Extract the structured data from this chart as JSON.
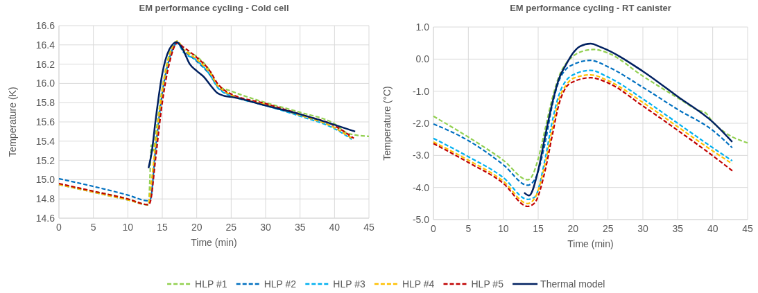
{
  "chart_data": [
    {
      "type": "line",
      "title": "EM performance cycling - Cold cell",
      "xlabel": "Time (min)",
      "ylabel": "Temperature (K)",
      "xlim": [
        0,
        45
      ],
      "xticks": [
        0,
        5,
        10,
        15,
        20,
        25,
        30,
        35,
        40,
        45
      ],
      "ylim": [
        14.6,
        16.6
      ],
      "yticks": [
        {
          "value": 14.6,
          "label": "14.6"
        },
        {
          "value": 14.8,
          "label": "14.8"
        },
        {
          "value": 15,
          "label": "15.0"
        },
        {
          "value": 15.2,
          "label": "15.2"
        },
        {
          "value": 15.4,
          "label": "15.4"
        },
        {
          "value": 15.6,
          "label": "15.6"
        },
        {
          "value": 15.8,
          "label": "15.8"
        },
        {
          "value": 16,
          "label": "16.0"
        },
        {
          "value": 16.2,
          "label": "16.2"
        },
        {
          "value": 16.4,
          "label": "16.4"
        },
        {
          "value": 16.6,
          "label": "16.6"
        }
      ],
      "grid": true,
      "legend": "bottom",
      "series": [
        {
          "name": "HLP #1",
          "color": "#92d050",
          "line_style": "dashed",
          "x": [
            0,
            5,
            10,
            13,
            13.2,
            13.4,
            13.7,
            14,
            15,
            16,
            17.2,
            18,
            20,
            22,
            23,
            25,
            30,
            35,
            40,
            42,
            45
          ],
          "values": [
            14.95,
            14.88,
            14.8,
            14.74,
            15.0,
            15.36,
            15.3,
            15.45,
            15.95,
            16.3,
            16.44,
            16.36,
            16.28,
            16.12,
            15.98,
            15.92,
            15.8,
            15.7,
            15.58,
            15.48,
            15.45
          ]
        },
        {
          "name": "HLP #2",
          "color": "#0070c0",
          "line_style": "dashed",
          "x": [
            0,
            5,
            10,
            13,
            13.3,
            14,
            15,
            16,
            17.2,
            18,
            20,
            22,
            23,
            24,
            25,
            30,
            35,
            40,
            42.5
          ],
          "values": [
            15.01,
            14.93,
            14.84,
            14.78,
            14.8,
            15.3,
            15.9,
            16.25,
            16.42,
            16.35,
            16.23,
            16.08,
            15.97,
            15.91,
            15.88,
            15.77,
            15.67,
            15.54,
            15.43
          ]
        },
        {
          "name": "HLP #3",
          "color": "#00b0f0",
          "line_style": "dashed",
          "x": [
            0,
            5,
            10,
            13,
            13.3,
            14,
            15,
            16,
            17.2,
            18,
            20,
            22,
            23,
            24,
            25,
            30,
            35,
            40,
            42.5
          ],
          "values": [
            14.95,
            14.87,
            14.79,
            14.74,
            14.85,
            15.3,
            15.88,
            16.25,
            16.42,
            16.33,
            16.24,
            16.08,
            15.96,
            15.9,
            15.87,
            15.77,
            15.66,
            15.53,
            15.42
          ]
        },
        {
          "name": "HLP #4",
          "color": "#ffc000",
          "line_style": "dashed",
          "x": [
            0,
            5,
            10,
            13,
            13.3,
            14,
            15,
            16,
            17.2,
            18,
            20,
            22,
            23,
            24,
            25,
            30,
            35,
            40,
            42.5
          ],
          "values": [
            14.95,
            14.87,
            14.79,
            14.74,
            14.9,
            15.35,
            15.92,
            16.28,
            16.44,
            16.36,
            16.25,
            16.1,
            15.98,
            15.92,
            15.88,
            15.78,
            15.67,
            15.54,
            15.43
          ]
        },
        {
          "name": "HLP #5",
          "color": "#c00000",
          "line_style": "dashed",
          "x": [
            0,
            5,
            10,
            13,
            13.3,
            14,
            15,
            16,
            17.2,
            18,
            20,
            22,
            23,
            24,
            25,
            30,
            35,
            40,
            42.8
          ],
          "values": [
            14.96,
            14.88,
            14.8,
            14.74,
            14.78,
            15.2,
            15.8,
            16.2,
            16.42,
            16.38,
            16.27,
            16.12,
            16.0,
            15.93,
            15.89,
            15.79,
            15.68,
            15.56,
            15.43
          ]
        },
        {
          "name": "Thermal model",
          "color": "#002060",
          "line_style": "solid",
          "x": [
            13,
            13.5,
            14,
            15,
            16,
            17.1,
            18,
            19,
            20,
            21,
            22,
            23,
            24,
            25,
            30,
            35,
            40,
            43
          ],
          "values": [
            15.12,
            15.3,
            15.6,
            16.1,
            16.35,
            16.43,
            16.35,
            16.2,
            16.13,
            16.07,
            15.98,
            15.9,
            15.87,
            15.86,
            15.77,
            15.68,
            15.57,
            15.5
          ]
        }
      ]
    },
    {
      "type": "line",
      "title": "EM performance cycling - RT canister",
      "xlabel": "Time (min)",
      "ylabel": "Temperature (°C)",
      "xlim": [
        0,
        45
      ],
      "xticks": [
        0,
        5,
        10,
        15,
        20,
        25,
        30,
        35,
        40,
        45
      ],
      "ylim": [
        -5,
        1
      ],
      "yticks": [
        {
          "value": -5,
          "label": "-5.0"
        },
        {
          "value": -4,
          "label": "-4.0"
        },
        {
          "value": -3,
          "label": "-3.0"
        },
        {
          "value": -2,
          "label": "-2.0"
        },
        {
          "value": -1,
          "label": "-1.0"
        },
        {
          "value": 0,
          "label": "0.0"
        },
        {
          "value": 1,
          "label": "1.0"
        }
      ],
      "grid": true,
      "legend": "bottom",
      "series": [
        {
          "name": "HLP #1",
          "color": "#92d050",
          "line_style": "dashed",
          "x": [
            0,
            5,
            10,
            13.5,
            14,
            15,
            16,
            17,
            18,
            19,
            20,
            22,
            23,
            25,
            30,
            35,
            38,
            39,
            40,
            42,
            45
          ],
          "values": [
            -1.78,
            -2.43,
            -3.15,
            -3.76,
            -3.69,
            -3.11,
            -2.18,
            -1.24,
            -0.53,
            -0.13,
            0.09,
            0.28,
            0.3,
            0.19,
            -0.53,
            -1.21,
            -1.6,
            -1.68,
            -1.96,
            -2.32,
            -2.61
          ]
        },
        {
          "name": "HLP #2",
          "color": "#0070c0",
          "line_style": "dashed",
          "x": [
            0,
            5,
            10,
            13.5,
            14.5,
            16,
            17,
            18,
            19,
            20,
            22.5,
            25,
            30,
            35,
            40,
            42.8
          ],
          "values": [
            -2.02,
            -2.54,
            -3.29,
            -3.93,
            -3.76,
            -2.61,
            -1.46,
            -0.67,
            -0.31,
            -0.17,
            -0.04,
            -0.24,
            -0.88,
            -1.57,
            -2.22,
            -2.76
          ]
        },
        {
          "name": "HLP #3",
          "color": "#00b0f0",
          "line_style": "dashed",
          "x": [
            0,
            5,
            10,
            13.5,
            14.5,
            16,
            17,
            18,
            19,
            20,
            22.5,
            25,
            30,
            35,
            40,
            42.8
          ],
          "values": [
            -2.47,
            -3.04,
            -3.69,
            -4.37,
            -4.3,
            -3.11,
            -1.96,
            -1.1,
            -0.67,
            -0.49,
            -0.35,
            -0.56,
            -1.24,
            -2.0,
            -2.76,
            -3.17
          ]
        },
        {
          "name": "HLP #4",
          "color": "#ffc000",
          "line_style": "dashed",
          "x": [
            0,
            5,
            10,
            13.5,
            14.5,
            16,
            17,
            18,
            19,
            20,
            22.5,
            25,
            30,
            35,
            40,
            42.8
          ],
          "values": [
            -2.58,
            -3.15,
            -3.8,
            -4.5,
            -4.34,
            -3.26,
            -2.18,
            -1.24,
            -0.81,
            -0.6,
            -0.49,
            -0.67,
            -1.35,
            -2.11,
            -2.86,
            -3.26
          ]
        },
        {
          "name": "HLP #5",
          "color": "#c00000",
          "line_style": "dashed",
          "x": [
            0,
            5,
            10,
            13.5,
            14.5,
            16,
            17,
            18,
            19,
            20,
            22.5,
            25,
            30,
            35,
            40,
            43
          ],
          "values": [
            -2.63,
            -3.22,
            -3.87,
            -4.59,
            -4.48,
            -3.47,
            -2.4,
            -1.39,
            -0.88,
            -0.71,
            -0.58,
            -0.74,
            -1.46,
            -2.22,
            -3.01,
            -3.51
          ]
        },
        {
          "name": "Thermal model",
          "color": "#002060",
          "line_style": "solid",
          "x": [
            13,
            13.7,
            15,
            16,
            17,
            18,
            19,
            20,
            21,
            22.5,
            24,
            30,
            35,
            40,
            42.8
          ],
          "values": [
            -4.16,
            -4.25,
            -3.47,
            -2.4,
            -1.39,
            -0.6,
            -0.17,
            0.19,
            0.4,
            0.48,
            0.37,
            -0.38,
            -1.17,
            -1.96,
            -2.58
          ]
        }
      ]
    }
  ]
}
